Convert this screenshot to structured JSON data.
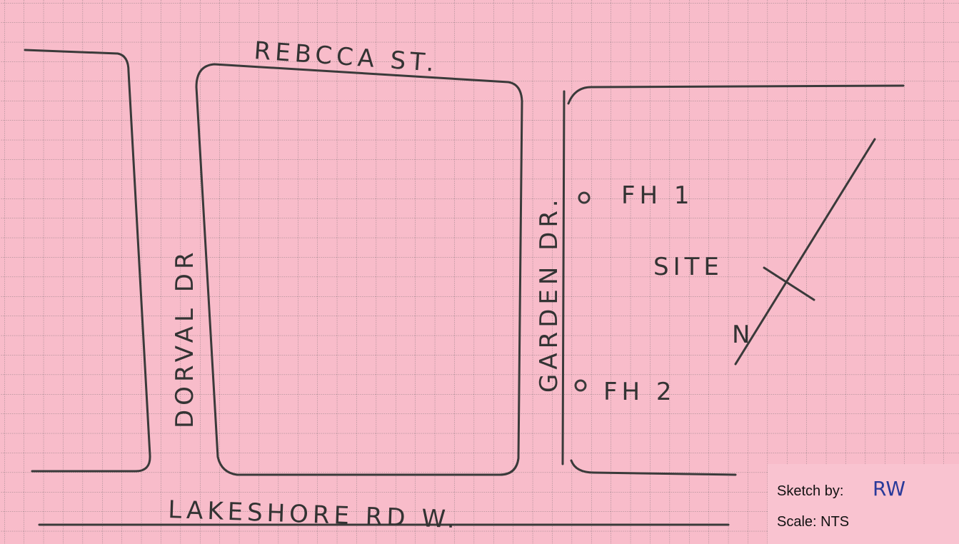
{
  "sketch": {
    "streets": {
      "top": "REBCCA ST.",
      "left": "DORVAL DR",
      "middle": "GARDEN DR.",
      "bottom": "LAKESHORE RD W."
    },
    "hydrants": [
      "FH 1",
      "FH 2"
    ],
    "site": "SITE",
    "north": "N",
    "legend": {
      "sketch_by_label": "Sketch by:",
      "sketch_by": "RW",
      "scale": "Scale: NTS"
    }
  }
}
